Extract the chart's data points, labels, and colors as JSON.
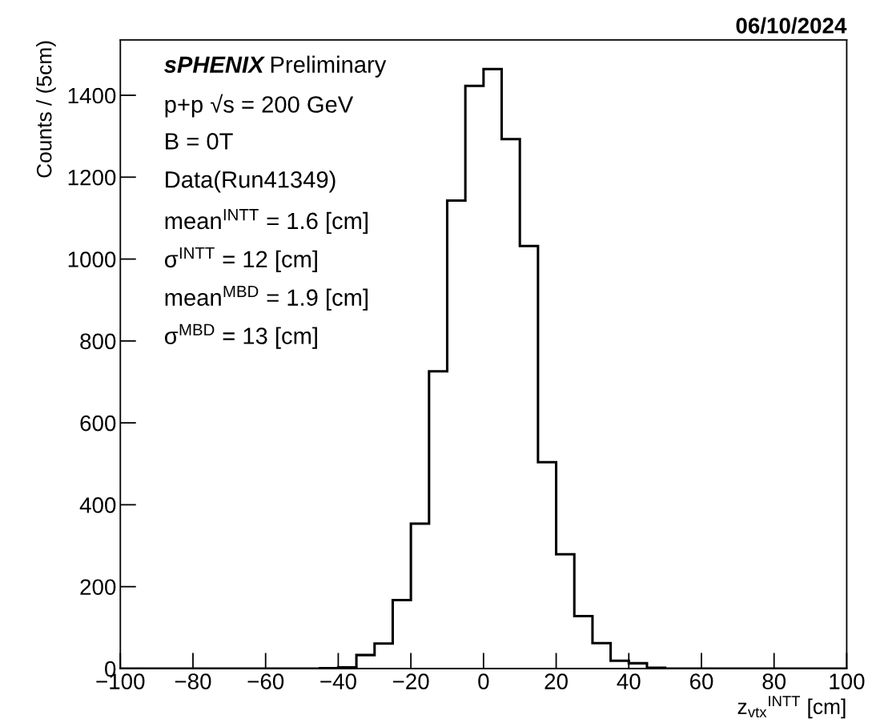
{
  "chart_data": {
    "type": "histogram",
    "title": "06/10/2024",
    "xlabel": "z$_{vtx}$$^{INTT}$ [cm]",
    "ylabel": "Counts / (5cm)",
    "bins": [
      -100,
      -95,
      -90,
      -85,
      -80,
      -75,
      -70,
      -65,
      -60,
      -55,
      -50,
      -45,
      -40,
      -35,
      -30,
      -25,
      -20,
      -15,
      -10,
      -5,
      0,
      5,
      10,
      15,
      20,
      25,
      30,
      35,
      40,
      45,
      50,
      55,
      60,
      65,
      70,
      75,
      80,
      85,
      90,
      95,
      100
    ],
    "values": [
      0,
      0,
      0,
      0,
      0,
      0,
      0,
      0,
      0,
      0,
      0,
      1,
      3,
      33,
      61,
      167,
      354,
      726,
      1143,
      1423,
      1464,
      1293,
      1032,
      504,
      279,
      128,
      62,
      19,
      13,
      2,
      0,
      0,
      0,
      0,
      0,
      0,
      0,
      0,
      0,
      0
    ],
    "color": "#000000",
    "xlim": [
      -100,
      100
    ],
    "xticks": [
      -100,
      -80,
      -60,
      -40,
      -20,
      0,
      20,
      40,
      60,
      80,
      100
    ],
    "ylim": [
      0,
      1535
    ],
    "yticks": [
      0,
      200,
      400,
      600,
      800,
      1000,
      1200,
      1400
    ],
    "grid": false,
    "legend": false,
    "annotations": [
      "sPHENIX Preliminary",
      "p+p √s = 200 GeV",
      "B = 0T",
      "Data(Run41349)",
      "mean$^{INTT}$ = 1.6 [cm]",
      "σ$^{INTT}$ = 12 [cm]",
      "mean$^{MBD}$ = 1.9 [cm]",
      "σ$^{MBD}$ = 13 [cm]"
    ]
  }
}
